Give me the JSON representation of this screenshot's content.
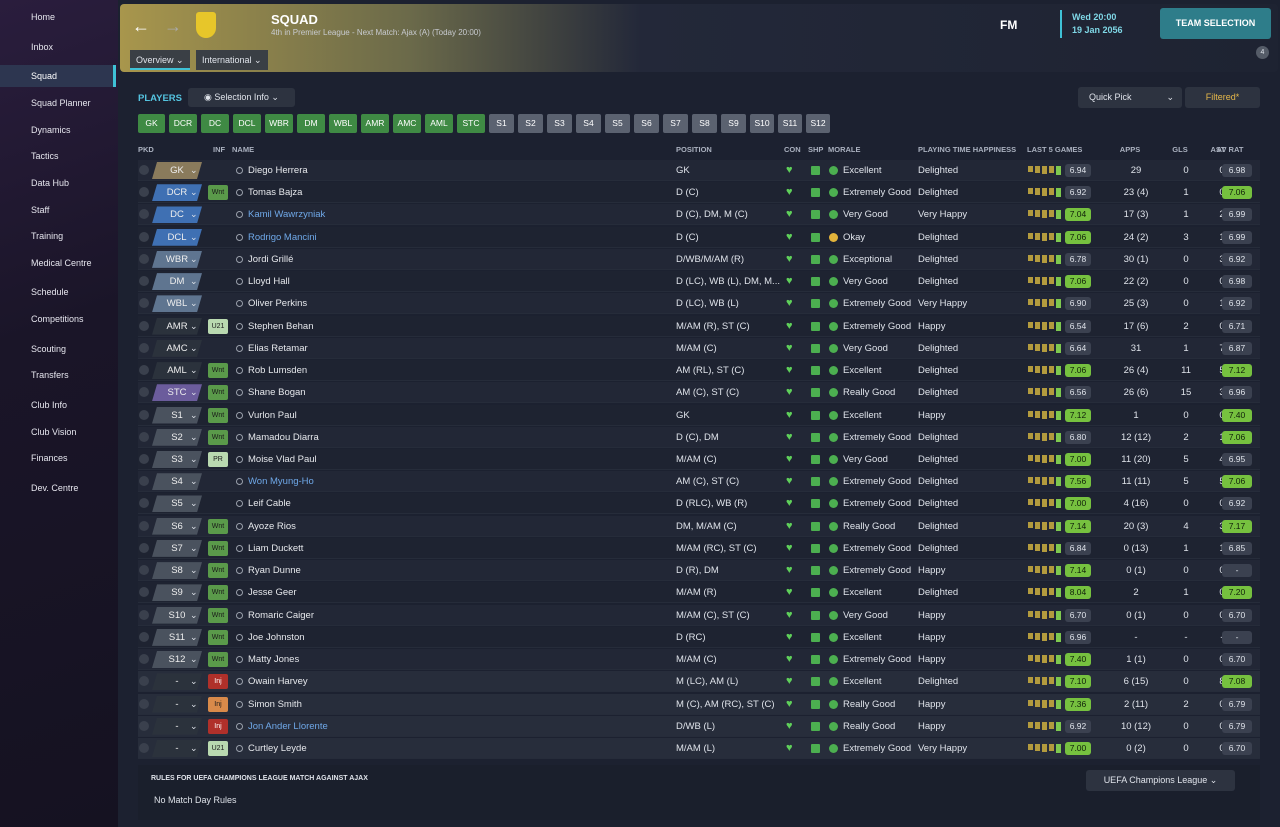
{
  "sidebar": {
    "items": [
      "Home",
      "Inbox",
      "Squad",
      "Squad Planner",
      "Dynamics",
      "Tactics",
      "Data Hub",
      "Staff",
      "Training",
      "Medical Centre",
      "Schedule",
      "Competitions",
      "Scouting",
      "Transfers",
      "Club Info",
      "Club Vision",
      "Finances",
      "Dev. Centre"
    ],
    "active": 2
  },
  "header": {
    "title": "SQUAD",
    "subtitle": "4th in Premier League - Next Match: Ajax (A) (Today 20:00)",
    "tabs": [
      "Overview",
      "International"
    ],
    "fm": "FM",
    "time": "Wed 20:00",
    "date": "19 Jan 2056",
    "button": "TEAM SELECTION",
    "badge": "4"
  },
  "players": {
    "title": "PLAYERS",
    "selection": "Selection Info",
    "quick_pick": "Quick Pick",
    "filtered": "Filtered*",
    "filters": [
      "GK",
      "DCR",
      "DC",
      "DCL",
      "WBR",
      "DM",
      "WBL",
      "AMR",
      "AMC",
      "AML",
      "STC",
      "S1",
      "S2",
      "S3",
      "S4",
      "S5",
      "S6",
      "S7",
      "S8",
      "S9",
      "S10",
      "S11",
      "S12"
    ],
    "filters_active": 11,
    "columns": [
      "PKD",
      "INF",
      "NAME",
      "POSITION",
      "CON",
      "SHP",
      "MORALE",
      "PLAYING TIME HAPPINESS",
      "LAST 5 GAMES",
      "APPS",
      "GLS",
      "AST",
      "AV RAT"
    ],
    "rows": [
      {
        "pkd": "GK",
        "pkd_color": "#8a7b5c",
        "inf": "",
        "name": "Diego Herrera",
        "pos": "GK",
        "morale": "Excellent",
        "happy": "Delighted",
        "form": "6.94",
        "apps": "29",
        "gls": "0",
        "ast": "0",
        "avr": "6.98"
      },
      {
        "pkd": "DCR",
        "pkd_color": "#3f70b3",
        "inf": "Wnt",
        "inf_color": "#5a9a4a",
        "name": "Tomas Bajza",
        "pos": "D (C)",
        "morale": "Extremely Good",
        "happy": "Delighted",
        "form": "6.92",
        "apps": "23 (4)",
        "gls": "1",
        "ast": "0",
        "avr": "7.06"
      },
      {
        "pkd": "DC",
        "pkd_color": "#3f70b3",
        "inf": "",
        "name": "Kamil Wawrzyniak",
        "link": true,
        "pos": "D (C), DM, M (C)",
        "morale": "Very Good",
        "happy": "Very Happy",
        "form": "7.04",
        "apps": "17 (3)",
        "gls": "1",
        "ast": "2",
        "avr": "6.99"
      },
      {
        "pkd": "DCL",
        "pkd_color": "#3f70b3",
        "inf": "",
        "name": "Rodrigo Mancini",
        "link": true,
        "pos": "D (C)",
        "morale": "Okay",
        "happy": "Delighted",
        "form": "7.06",
        "apps": "24 (2)",
        "gls": "3",
        "ast": "1",
        "avr": "6.99"
      },
      {
        "pkd": "WBR",
        "pkd_color": "#5f7590",
        "inf": "",
        "name": "Jordi Grillé",
        "pos": "D/WB/M/AM (R)",
        "morale": "Exceptional",
        "happy": "Delighted",
        "form": "6.78",
        "apps": "30 (1)",
        "gls": "0",
        "ast": "3",
        "avr": "6.92"
      },
      {
        "pkd": "DM",
        "pkd_color": "#5f7590",
        "inf": "",
        "name": "Lloyd Hall",
        "pos": "D (LC), WB (L), DM, M...",
        "morale": "Very Good",
        "happy": "Delighted",
        "form": "7.06",
        "apps": "22 (2)",
        "gls": "0",
        "ast": "0",
        "avr": "6.98"
      },
      {
        "pkd": "WBL",
        "pkd_color": "#5f7590",
        "inf": "",
        "name": "Oliver Perkins",
        "pos": "D (LC), WB (L)",
        "morale": "Extremely Good",
        "happy": "Very Happy",
        "form": "6.90",
        "apps": "25 (3)",
        "gls": "0",
        "ast": "1",
        "avr": "6.92"
      },
      {
        "pkd": "AMR",
        "pkd_color": "#2b323c",
        "inf": "U21",
        "inf_color": "#b9d9b0",
        "name": "Stephen Behan",
        "pos": "M/AM (R), ST (C)",
        "morale": "Extremely Good",
        "happy": "Happy",
        "form": "6.54",
        "apps": "17 (6)",
        "gls": "2",
        "ast": "0",
        "avr": "6.71"
      },
      {
        "pkd": "AMC",
        "pkd_color": "#2b323c",
        "inf": "",
        "name": "Elias Retamar",
        "pos": "M/AM (C)",
        "morale": "Very Good",
        "happy": "Delighted",
        "form": "6.64",
        "apps": "31",
        "gls": "1",
        "ast": "7",
        "avr": "6.87"
      },
      {
        "pkd": "AML",
        "pkd_color": "#2b323c",
        "inf": "Wnt",
        "inf_color": "#5a9a4a",
        "name": "Rob Lumsden",
        "pos": "AM (RL), ST (C)",
        "morale": "Excellent",
        "happy": "Delighted",
        "form": "7.06",
        "apps": "26 (4)",
        "gls": "11",
        "ast": "5",
        "avr": "7.12"
      },
      {
        "pkd": "STC",
        "pkd_color": "#6b5c9c",
        "inf": "Wnt",
        "inf_color": "#5a9a4a",
        "name": "Shane Bogan",
        "pos": "AM (C), ST (C)",
        "morale": "Really Good",
        "happy": "Delighted",
        "form": "6.56",
        "apps": "26 (6)",
        "gls": "15",
        "ast": "3",
        "avr": "6.96"
      },
      {
        "pkd": "S1",
        "pkd_color": "#4a525e",
        "inf": "Wnt",
        "inf_color": "#5a9a4a",
        "name": "Vurlon Paul",
        "pos": "GK",
        "morale": "Excellent",
        "happy": "Happy",
        "form": "7.12",
        "apps": "1",
        "gls": "0",
        "ast": "0",
        "avr": "7.40"
      },
      {
        "pkd": "S2",
        "pkd_color": "#4a525e",
        "inf": "Wnt",
        "inf_color": "#5a9a4a",
        "name": "Mamadou Diarra",
        "pos": "D (C), DM",
        "morale": "Extremely Good",
        "happy": "Delighted",
        "form": "6.80",
        "apps": "12 (12)",
        "gls": "2",
        "ast": "1",
        "avr": "7.06"
      },
      {
        "pkd": "S3",
        "pkd_color": "#4a525e",
        "inf": "PR",
        "inf_color": "#b9d9b0",
        "name": "Moise Vlad Paul",
        "pos": "M/AM (C)",
        "morale": "Very Good",
        "happy": "Delighted",
        "form": "7.00",
        "apps": "11 (20)",
        "gls": "5",
        "ast": "4",
        "avr": "6.95"
      },
      {
        "pkd": "S4",
        "pkd_color": "#4a525e",
        "inf": "",
        "name": "Won Myung-Ho",
        "link": true,
        "pos": "AM (C), ST (C)",
        "morale": "Extremely Good",
        "happy": "Delighted",
        "form": "7.56",
        "apps": "11 (11)",
        "gls": "5",
        "ast": "5",
        "avr": "7.06"
      },
      {
        "pkd": "S5",
        "pkd_color": "#4a525e",
        "inf": "",
        "name": "Leif Cable",
        "pos": "D (RLC), WB (R)",
        "morale": "Extremely Good",
        "happy": "Delighted",
        "form": "7.00",
        "apps": "4 (16)",
        "gls": "0",
        "ast": "0",
        "avr": "6.92"
      },
      {
        "pkd": "S6",
        "pkd_color": "#4a525e",
        "inf": "Wnt",
        "inf_color": "#5a9a4a",
        "name": "Ayoze Rios",
        "pos": "DM, M/AM (C)",
        "morale": "Really Good",
        "happy": "Delighted",
        "form": "7.14",
        "apps": "20 (3)",
        "gls": "4",
        "ast": "3",
        "avr": "7.17"
      },
      {
        "pkd": "S7",
        "pkd_color": "#4a525e",
        "inf": "Wnt",
        "inf_color": "#5a9a4a",
        "name": "Liam Duckett",
        "pos": "M/AM (RC), ST (C)",
        "morale": "Extremely Good",
        "happy": "Delighted",
        "form": "6.84",
        "apps": "0 (13)",
        "gls": "1",
        "ast": "1",
        "avr": "6.85"
      },
      {
        "pkd": "S8",
        "pkd_color": "#4a525e",
        "inf": "Wnt",
        "inf_color": "#5a9a4a",
        "name": "Ryan Dunne",
        "pos": "D (R), DM",
        "morale": "Extremely Good",
        "happy": "Happy",
        "form": "7.14",
        "apps": "0 (1)",
        "gls": "0",
        "ast": "0",
        "avr": "-"
      },
      {
        "pkd": "S9",
        "pkd_color": "#4a525e",
        "inf": "Wnt",
        "inf_color": "#5a9a4a",
        "name": "Jesse Geer",
        "pos": "M/AM (R)",
        "morale": "Excellent",
        "happy": "Delighted",
        "form": "8.04",
        "apps": "2",
        "gls": "1",
        "ast": "0",
        "avr": "7.20"
      },
      {
        "pkd": "S10",
        "pkd_color": "#4a525e",
        "inf": "Wnt",
        "inf_color": "#5a9a4a",
        "name": "Romaric Caiger",
        "pos": "M/AM (C), ST (C)",
        "morale": "Very Good",
        "happy": "Happy",
        "form": "6.70",
        "apps": "0 (1)",
        "gls": "0",
        "ast": "0",
        "avr": "6.70"
      },
      {
        "pkd": "S11",
        "pkd_color": "#4a525e",
        "inf": "Wnt",
        "inf_color": "#5a9a4a",
        "name": "Joe Johnston",
        "pos": "D (RC)",
        "morale": "Excellent",
        "happy": "Happy",
        "form": "6.96",
        "apps": "-",
        "gls": "-",
        "ast": "-",
        "avr": "-"
      },
      {
        "pkd": "S12",
        "pkd_color": "#4a525e",
        "inf": "Wnt",
        "inf_color": "#5a9a4a",
        "name": "Matty Jones",
        "pos": "M/AM (C)",
        "morale": "Extremely Good",
        "happy": "Happy",
        "form": "7.40",
        "apps": "1 (1)",
        "gls": "0",
        "ast": "0",
        "avr": "6.70"
      },
      {
        "pkd": "-",
        "pkd_color": "#2b323c",
        "inf": "Inj",
        "inf_color": "#b0302a",
        "name": "Owain Harvey",
        "pos": "M (LC), AM (L)",
        "morale": "Excellent",
        "happy": "Delighted",
        "form": "7.10",
        "apps": "6 (15)",
        "gls": "0",
        "ast": "8",
        "avr": "7.08"
      },
      {
        "pkd": "-",
        "pkd_color": "#2b323c",
        "inf": "Inj",
        "inf_color": "#d98a4a",
        "name": "Simon Smith",
        "pos": "M (C), AM (RC), ST (C)",
        "morale": "Really Good",
        "happy": "Happy",
        "form": "7.36",
        "apps": "2 (11)",
        "gls": "2",
        "ast": "0",
        "avr": "6.79"
      },
      {
        "pkd": "-",
        "pkd_color": "#2b323c",
        "inf": "Inj",
        "inf_color": "#b0302a",
        "name": "Jon Ander Llorente",
        "link": true,
        "pos": "D/WB (L)",
        "morale": "Really Good",
        "happy": "Happy",
        "form": "6.92",
        "apps": "10 (12)",
        "gls": "0",
        "ast": "0",
        "avr": "6.79"
      },
      {
        "pkd": "-",
        "pkd_color": "#2b323c",
        "inf": "U21",
        "inf_color": "#b9d9b0",
        "name": "Curtley Leyde",
        "pos": "M/AM (L)",
        "morale": "Extremely Good",
        "happy": "Very Happy",
        "form": "7.00",
        "apps": "0 (2)",
        "gls": "0",
        "ast": "0",
        "avr": "6.70"
      }
    ]
  },
  "rules": {
    "title": "RULES FOR UEFA CHAMPIONS LEAGUE MATCH AGAINST AJAX",
    "competition": "UEFA Champions League",
    "text": "No Match Day Rules"
  }
}
